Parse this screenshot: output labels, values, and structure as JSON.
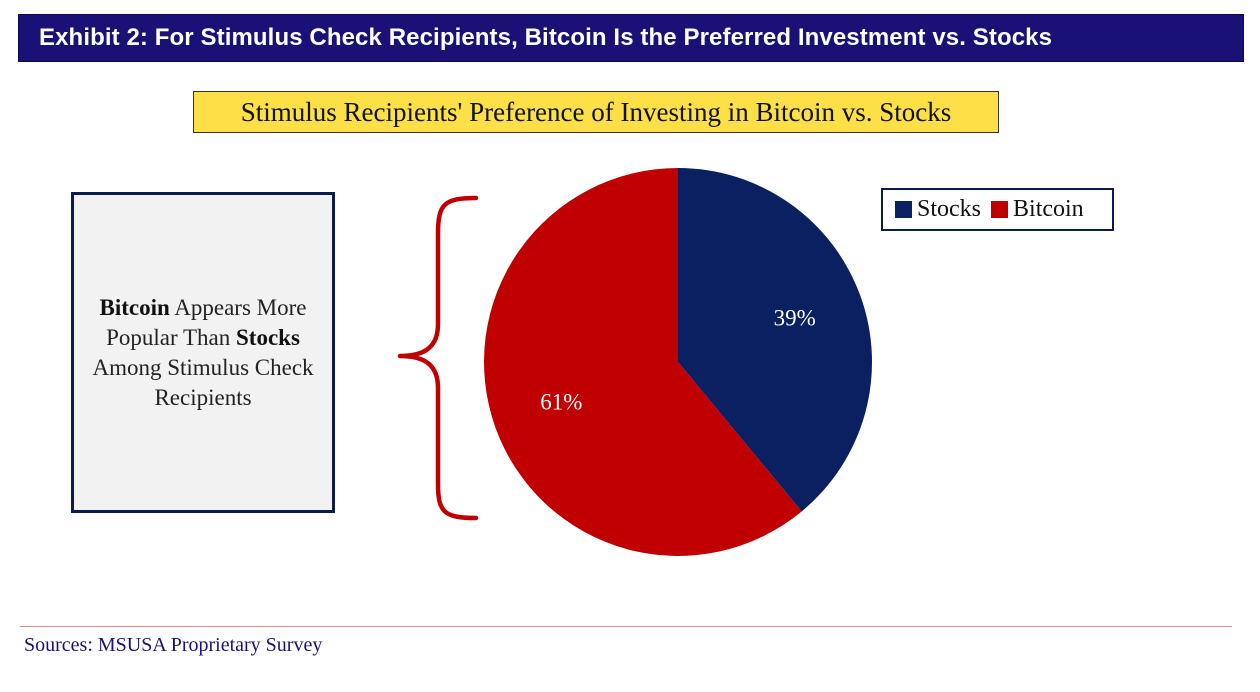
{
  "header": {
    "title": "Exhibit 2: For Stimulus Check Recipients, Bitcoin Is the Preferred Investment vs. Stocks"
  },
  "callout": {
    "bold_1": "Bitcoin",
    "text_1": " Appears More Popular Than ",
    "bold_2": "Stocks",
    "text_2": " Among Stimulus Check Recipients"
  },
  "footer": {
    "source": "Sources: MSUSA Proprietary Survey"
  },
  "colors": {
    "stocks": "#0b2060",
    "bitcoin": "#c00000",
    "header_bg": "#1a1176",
    "title_bg": "#fde047"
  },
  "chart_data": {
    "type": "pie",
    "title": "Stimulus Recipients' Preference of Investing in Bitcoin vs. Stocks",
    "slices": [
      {
        "label": "Stocks",
        "value": 39,
        "display": "39%",
        "color": "#0b2060"
      },
      {
        "label": "Bitcoin",
        "value": 61,
        "display": "61%",
        "color": "#c00000"
      }
    ],
    "legend": [
      "Stocks",
      "Bitcoin"
    ],
    "legend_position": "top-right",
    "start": "top",
    "direction": "clockwise"
  }
}
